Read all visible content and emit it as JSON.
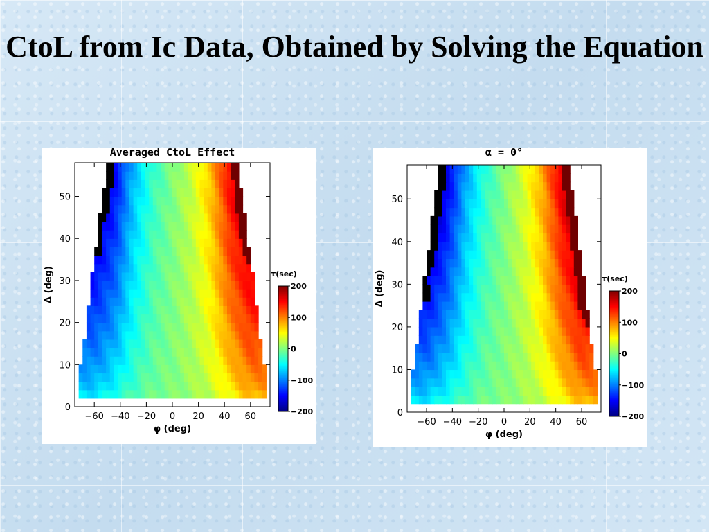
{
  "slide": {
    "title": "CtoL from Ic Data, Obtained by Solving the Equation"
  },
  "colors": {
    "background": "#cfe3f3",
    "panel": "#ffffff",
    "colormap": [
      "#000080",
      "#0000ff",
      "#0080ff",
      "#00ffff",
      "#80ff80",
      "#ffff00",
      "#ff8000",
      "#ff0000",
      "#800000"
    ]
  },
  "chart_data": [
    {
      "type": "heatmap",
      "title": "Averaged CtoL Effect",
      "xlabel": "φ (deg)",
      "ylabel": "Δ (deg)",
      "xlim": [
        -75,
        75
      ],
      "ylim": [
        0,
        58
      ],
      "x_ticks": [
        -60,
        -40,
        -20,
        0,
        20,
        40,
        60
      ],
      "y_ticks": [
        0,
        10,
        20,
        30,
        40,
        50
      ],
      "colorbar": {
        "label": "τ(sec)",
        "range": [
          -200,
          200
        ],
        "ticks": [
          200,
          100,
          0,
          -100,
          -200
        ]
      },
      "data_region": {
        "y_min": 2,
        "y_max": 58,
        "phi_edge_at_top": 50,
        "phi_edge_at_bottom": 73
      },
      "value_profile": {
        "description_points_phi": [
          -60,
          -45,
          -30,
          -15,
          0,
          15,
          30,
          45,
          60
        ],
        "tau_at_high_delta": [
          -200,
          -160,
          -80,
          -30,
          0,
          30,
          80,
          160,
          200
        ],
        "tau_at_low_delta": [
          -60,
          -40,
          -20,
          -5,
          0,
          10,
          25,
          50,
          80
        ]
      }
    },
    {
      "type": "heatmap",
      "title": "α = 0°",
      "xlabel": "φ (deg)",
      "ylabel": "Δ (deg)",
      "xlim": [
        -75,
        75
      ],
      "ylim": [
        0,
        58
      ],
      "x_ticks": [
        -60,
        -40,
        -20,
        0,
        20,
        40,
        60
      ],
      "y_ticks": [
        0,
        10,
        20,
        30,
        40,
        50
      ],
      "colorbar": {
        "label": "τ(sec)",
        "range": [
          -200,
          200
        ],
        "ticks": [
          200,
          100,
          0,
          -100,
          -200
        ]
      },
      "data_region": {
        "y_min": 2,
        "y_max": 58,
        "phi_edge_at_top": 50,
        "phi_edge_at_bottom": 73
      },
      "value_profile": {
        "description_points_phi": [
          -60,
          -45,
          -30,
          -15,
          0,
          15,
          30,
          45,
          60
        ],
        "tau_at_high_delta": [
          -220,
          -170,
          -90,
          -35,
          0,
          35,
          90,
          170,
          220
        ],
        "tau_at_low_delta": [
          -60,
          -40,
          -20,
          -5,
          0,
          10,
          25,
          50,
          80
        ]
      }
    }
  ]
}
